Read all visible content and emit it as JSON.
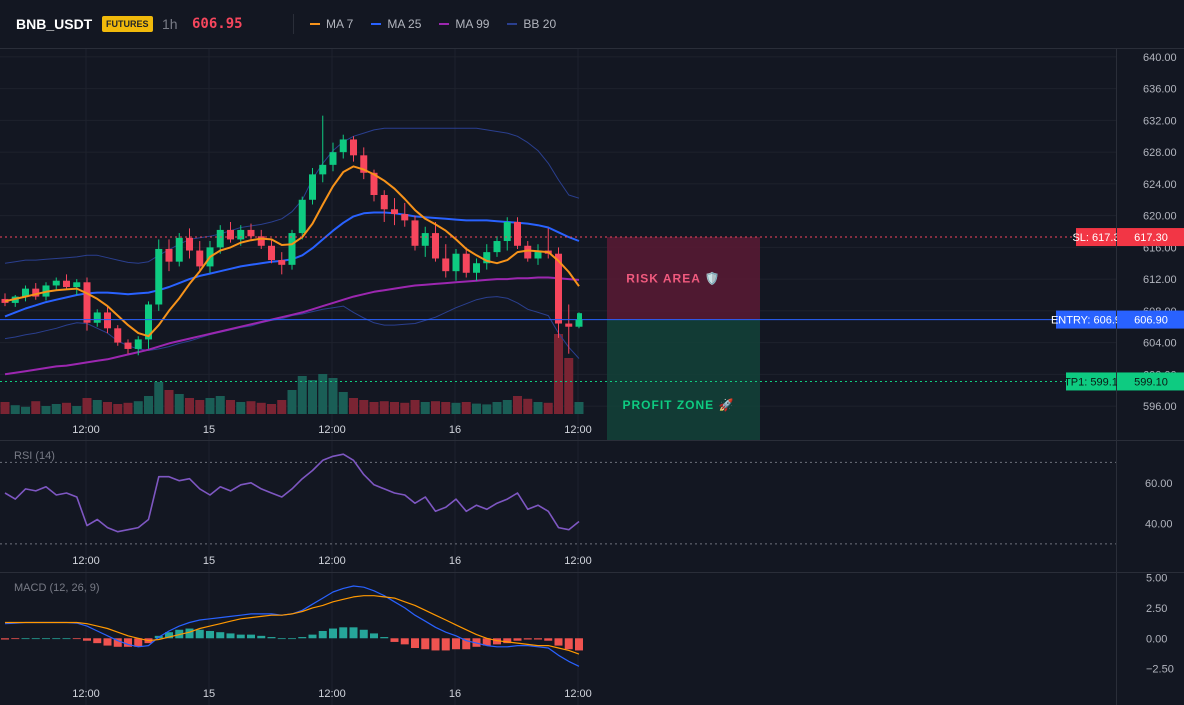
{
  "header": {
    "symbol": "BNB_USDT",
    "badge": "FUTURES",
    "timeframe": "1h",
    "price": "606.95"
  },
  "legend": [
    {
      "label": "MA 7",
      "color": "#f7931a"
    },
    {
      "label": "MA 25",
      "color": "#2962ff"
    },
    {
      "label": "MA 99",
      "color": "#9c27b0"
    },
    {
      "label": "BB 20",
      "color": "#2a3f8f"
    }
  ],
  "colors": {
    "up": "#0ecb81",
    "down": "#f6465d",
    "vol_up": "#1a5e56",
    "vol_down": "#7a2433",
    "rsi": "#7e57c2",
    "macd_line": "#2962ff",
    "signal_line": "#ff9800",
    "hist_pos": "#26a69a",
    "hist_neg": "#ef5350"
  },
  "chart_data": [
    {
      "type": "candlestick",
      "name": "price",
      "ylim": [
        595,
        641
      ],
      "yticks": [
        "640.00",
        "636.00",
        "632.00",
        "628.00",
        "624.00",
        "620.00",
        "616.00",
        "612.00",
        "608.00",
        "604.00",
        "600.00",
        "596.00"
      ],
      "xlabels": [
        {
          "label": "12:00",
          "bar": 7
        },
        {
          "label": "15",
          "bar": 19
        },
        {
          "label": "12:00",
          "bar": 31
        },
        {
          "label": "16",
          "bar": 43
        },
        {
          "label": "12:00",
          "bar": 55
        }
      ],
      "candles": [
        [
          609.5,
          610.2,
          608.6,
          609.0
        ],
        [
          609.0,
          610.0,
          608.5,
          609.8
        ],
        [
          609.8,
          611.2,
          609.2,
          610.8
        ],
        [
          610.8,
          611.5,
          609.4,
          609.8
        ],
        [
          609.8,
          611.6,
          609.3,
          611.2
        ],
        [
          611.2,
          612.2,
          610.5,
          611.8
        ],
        [
          611.8,
          612.6,
          610.8,
          611.0
        ],
        [
          611.0,
          612.0,
          610.0,
          611.6
        ],
        [
          611.6,
          612.2,
          605.5,
          606.5
        ],
        [
          606.5,
          608.2,
          606.0,
          607.8
        ],
        [
          607.8,
          608.6,
          605.2,
          605.8
        ],
        [
          605.8,
          606.2,
          603.6,
          604.0
        ],
        [
          604.0,
          604.4,
          602.6,
          603.2
        ],
        [
          603.2,
          604.8,
          602.4,
          604.4
        ],
        [
          604.4,
          609.2,
          603.2,
          608.8
        ],
        [
          608.8,
          617.0,
          608.0,
          615.8
        ],
        [
          615.8,
          617.0,
          613.0,
          614.2
        ],
        [
          614.2,
          617.8,
          613.6,
          617.2
        ],
        [
          617.2,
          618.4,
          614.6,
          615.6
        ],
        [
          615.6,
          616.8,
          613.0,
          613.6
        ],
        [
          613.6,
          616.8,
          612.8,
          616.0
        ],
        [
          616.0,
          618.8,
          615.2,
          618.2
        ],
        [
          618.2,
          619.2,
          616.6,
          617.0
        ],
        [
          617.0,
          618.8,
          616.2,
          618.2
        ],
        [
          618.2,
          619.0,
          616.8,
          617.4
        ],
        [
          617.4,
          618.2,
          615.8,
          616.2
        ],
        [
          616.2,
          617.0,
          614.0,
          614.4
        ],
        [
          614.4,
          615.4,
          612.6,
          613.8
        ],
        [
          613.8,
          618.2,
          613.2,
          617.8
        ],
        [
          617.8,
          622.4,
          617.0,
          622.0
        ],
        [
          622.0,
          626.0,
          621.4,
          625.2
        ],
        [
          625.2,
          632.6,
          624.2,
          626.4
        ],
        [
          626.4,
          629.2,
          625.6,
          628.0
        ],
        [
          628.0,
          630.2,
          627.2,
          629.6
        ],
        [
          629.6,
          630.0,
          626.8,
          627.6
        ],
        [
          627.6,
          628.6,
          624.6,
          625.4
        ],
        [
          625.4,
          625.8,
          621.8,
          622.6
        ],
        [
          622.6,
          623.2,
          619.2,
          620.8
        ],
        [
          620.8,
          622.2,
          618.8,
          620.2
        ],
        [
          620.2,
          621.6,
          618.6,
          619.4
        ],
        [
          619.4,
          620.0,
          615.6,
          616.2
        ],
        [
          616.2,
          618.6,
          614.8,
          617.8
        ],
        [
          617.8,
          619.2,
          614.2,
          614.6
        ],
        [
          614.6,
          616.4,
          612.2,
          613.0
        ],
        [
          613.0,
          615.8,
          611.8,
          615.2
        ],
        [
          615.2,
          616.0,
          612.2,
          612.8
        ],
        [
          612.8,
          614.6,
          611.8,
          614.0
        ],
        [
          614.0,
          616.4,
          613.2,
          615.4
        ],
        [
          615.4,
          617.4,
          614.8,
          616.8
        ],
        [
          616.8,
          619.8,
          615.6,
          619.2
        ],
        [
          619.2,
          619.8,
          615.8,
          616.2
        ],
        [
          616.2,
          616.8,
          614.2,
          614.6
        ],
        [
          614.6,
          616.4,
          613.8,
          615.6
        ],
        [
          615.6,
          618.4,
          614.6,
          615.2
        ],
        [
          615.2,
          616.0,
          604.6,
          606.4
        ],
        [
          606.4,
          608.8,
          602.6,
          606.0
        ],
        [
          606.0,
          607.8,
          605.8,
          606.95
        ]
      ],
      "volume": [
        3.0,
        2.2,
        1.8,
        3.2,
        2.0,
        2.5,
        2.8,
        2.0,
        4.0,
        3.5,
        3.0,
        2.5,
        2.8,
        3.2,
        4.5,
        8.0,
        6.0,
        5.0,
        4.0,
        3.5,
        4.0,
        4.5,
        3.5,
        3.0,
        3.2,
        2.8,
        2.5,
        3.5,
        6.0,
        9.5,
        8.5,
        10.0,
        9.0,
        5.5,
        4.0,
        3.5,
        3.0,
        3.2,
        3.0,
        2.8,
        3.5,
        3.0,
        3.2,
        3.0,
        2.8,
        3.0,
        2.6,
        2.4,
        3.0,
        3.5,
        4.5,
        3.8,
        3.0,
        2.8,
        20.0,
        14.0,
        3.0
      ],
      "vol_max": 30,
      "bollinger": {
        "upper": [
          614,
          614.2,
          614.4,
          614.4,
          614.5,
          614.6,
          614.7,
          614.8,
          615.0,
          615.0,
          614.7,
          614.4,
          614.1,
          614.0,
          614.2,
          615.0,
          615.7,
          616.4,
          617.0,
          617.2,
          617.4,
          617.7,
          618.1,
          618.5,
          618.7,
          618.9,
          619.2,
          619.6,
          620.5,
          622.0,
          624.6,
          626.6,
          628.2,
          629.3,
          630.0,
          630.4,
          630.8,
          631.0,
          631.0,
          631.0,
          631.0,
          631.0,
          631.0,
          631.0,
          631.0,
          631.0,
          631.0,
          630.8,
          630.6,
          630.4,
          630.0,
          629.2,
          628.2,
          626.6,
          624.5,
          622.6,
          622.2
        ],
        "lower": [
          604.5,
          604.7,
          605.0,
          605.2,
          605.5,
          605.8,
          606.2,
          606.5,
          606.4,
          605.8,
          605.2,
          604.2,
          603.6,
          603.2,
          603.0,
          603.2,
          603.5,
          603.9,
          604.2,
          604.6,
          605.0,
          605.3,
          605.6,
          605.9,
          606.1,
          606.5,
          606.8,
          607.0,
          607.4,
          607.6,
          607.9,
          608.2,
          608.4,
          608.6,
          607.8,
          607.1,
          606.5,
          606.2,
          606.2,
          606.3,
          606.4,
          606.8,
          607.2,
          607.8,
          608.4,
          608.9,
          609.4,
          609.7,
          609.8,
          609.6,
          609.0,
          608.2,
          607.8,
          607.4,
          605.2,
          603.4,
          602.0
        ]
      },
      "ma7": [
        609.2,
        609.5,
        609.8,
        610.1,
        610.4,
        610.6,
        610.7,
        610.8,
        610.2,
        609.5,
        608.6,
        607.4,
        606.2,
        605.2,
        604.8,
        606.2,
        608.0,
        609.6,
        611.4,
        613.0,
        614.8,
        615.6,
        616.0,
        616.6,
        616.9,
        617.1,
        617.0,
        616.3,
        616.4,
        617.3,
        619.0,
        621.4,
        623.7,
        625.5,
        626.2,
        625.8,
        625.2,
        624.4,
        623.4,
        622.1,
        620.7,
        619.6,
        618.9,
        618.1,
        617.0,
        615.8,
        615.0,
        614.3,
        614.0,
        614.4,
        615.4,
        615.6,
        615.5,
        615.4,
        614.3,
        612.9,
        611.1
      ],
      "ma25": [
        607.3,
        607.8,
        608.3,
        608.7,
        609.1,
        609.4,
        609.7,
        610.0,
        610.2,
        610.3,
        610.3,
        610.2,
        610.1,
        610.2,
        610.3,
        610.6,
        611.0,
        611.5,
        612.0,
        612.4,
        612.7,
        613.0,
        613.3,
        613.6,
        613.8,
        614.0,
        614.2,
        614.3,
        614.5,
        615.0,
        615.9,
        617.0,
        618.1,
        619.1,
        619.9,
        620.3,
        620.4,
        620.4,
        620.3,
        620.1,
        619.9,
        619.8,
        619.7,
        619.6,
        619.5,
        619.4,
        619.4,
        619.4,
        619.3,
        619.2,
        619.1,
        619.0,
        618.8,
        618.5,
        617.9,
        617.3,
        616.8
      ],
      "ma99": [
        600.0,
        600.2,
        600.4,
        600.6,
        600.8,
        601.0,
        601.1,
        601.3,
        601.5,
        601.7,
        601.9,
        602.2,
        602.5,
        602.8,
        603.1,
        603.5,
        603.9,
        604.2,
        604.5,
        604.8,
        605.1,
        605.4,
        605.7,
        606.0,
        606.3,
        606.6,
        606.9,
        607.2,
        607.5,
        607.8,
        608.2,
        608.6,
        609.0,
        609.4,
        609.8,
        610.1,
        610.4,
        610.6,
        610.8,
        611.0,
        611.2,
        611.3,
        611.4,
        611.5,
        611.6,
        611.7,
        611.8,
        611.9,
        612.0,
        612.0,
        612.1,
        612.1,
        612.2,
        612.2,
        612.1,
        612.0,
        611.9
      ],
      "levels": {
        "sl": {
          "label": "SL: 617.3",
          "value": 617.3,
          "text": "617.30"
        },
        "entry": {
          "label": "ENTRY: 606.9",
          "value": 606.9,
          "text": "606.90"
        },
        "tp1": {
          "label": "TP1: 599.1",
          "value": 599.1,
          "text": "599.10"
        }
      },
      "zones": {
        "risk": {
          "label": "RISK AREA 🛡️",
          "from": 606.9,
          "to": 617.3
        },
        "profit": {
          "label": "PROFIT ZONE 🚀",
          "from": 593.0,
          "to": 606.9
        }
      }
    },
    {
      "type": "line",
      "name": "rsi",
      "title": "RSI (14)",
      "ylim": [
        28,
        80
      ],
      "yticks": [
        "60.00",
        "40.00"
      ],
      "bands": [
        70,
        30
      ],
      "values": [
        55,
        52,
        57,
        56,
        58,
        54,
        55,
        53,
        39,
        42,
        38,
        36,
        37,
        38,
        42,
        63,
        63,
        61,
        62,
        57,
        54,
        58,
        56,
        59,
        60,
        57,
        55,
        53,
        57,
        62,
        66,
        71,
        73,
        74,
        71,
        64,
        59,
        57,
        55,
        54,
        50,
        53,
        46,
        48,
        52,
        46,
        49,
        47,
        50,
        52,
        55,
        47,
        49,
        46,
        38,
        37,
        41
      ]
    },
    {
      "type": "line",
      "name": "macd",
      "title": "MACD (12, 26, 9)",
      "ylim": [
        -3.1,
        5.2
      ],
      "yticks": [
        "5.00",
        "2.50",
        "0.00",
        "−2.50"
      ],
      "macd": [
        1.2,
        1.25,
        1.3,
        1.3,
        1.3,
        1.3,
        1.3,
        1.25,
        1.0,
        0.6,
        0.2,
        -0.2,
        -0.5,
        -0.7,
        -0.6,
        0.1,
        0.6,
        1.0,
        1.3,
        1.5,
        1.6,
        1.7,
        1.8,
        1.9,
        2.0,
        2.0,
        2.0,
        1.9,
        2.0,
        2.3,
        2.8,
        3.3,
        3.8,
        4.1,
        4.3,
        4.2,
        3.9,
        3.5,
        3.0,
        2.5,
        1.9,
        1.4,
        0.9,
        0.5,
        0.2,
        -0.2,
        -0.4,
        -0.6,
        -0.7,
        -0.7,
        -0.6,
        -0.6,
        -0.7,
        -0.8,
        -1.4,
        -1.9,
        -2.3
      ],
      "signal": [
        1.3,
        1.3,
        1.3,
        1.3,
        1.3,
        1.3,
        1.3,
        1.3,
        1.2,
        1.0,
        0.8,
        0.5,
        0.2,
        0.0,
        -0.2,
        -0.1,
        0.1,
        0.3,
        0.5,
        0.8,
        1.0,
        1.2,
        1.4,
        1.6,
        1.7,
        1.8,
        1.9,
        1.9,
        2.0,
        2.2,
        2.5,
        2.7,
        3.0,
        3.2,
        3.4,
        3.5,
        3.5,
        3.4,
        3.3,
        3.0,
        2.7,
        2.3,
        1.9,
        1.5,
        1.1,
        0.7,
        0.3,
        0.0,
        -0.2,
        -0.3,
        -0.4,
        -0.5,
        -0.6,
        -0.6,
        -0.8,
        -1.0,
        -1.3
      ]
    }
  ]
}
